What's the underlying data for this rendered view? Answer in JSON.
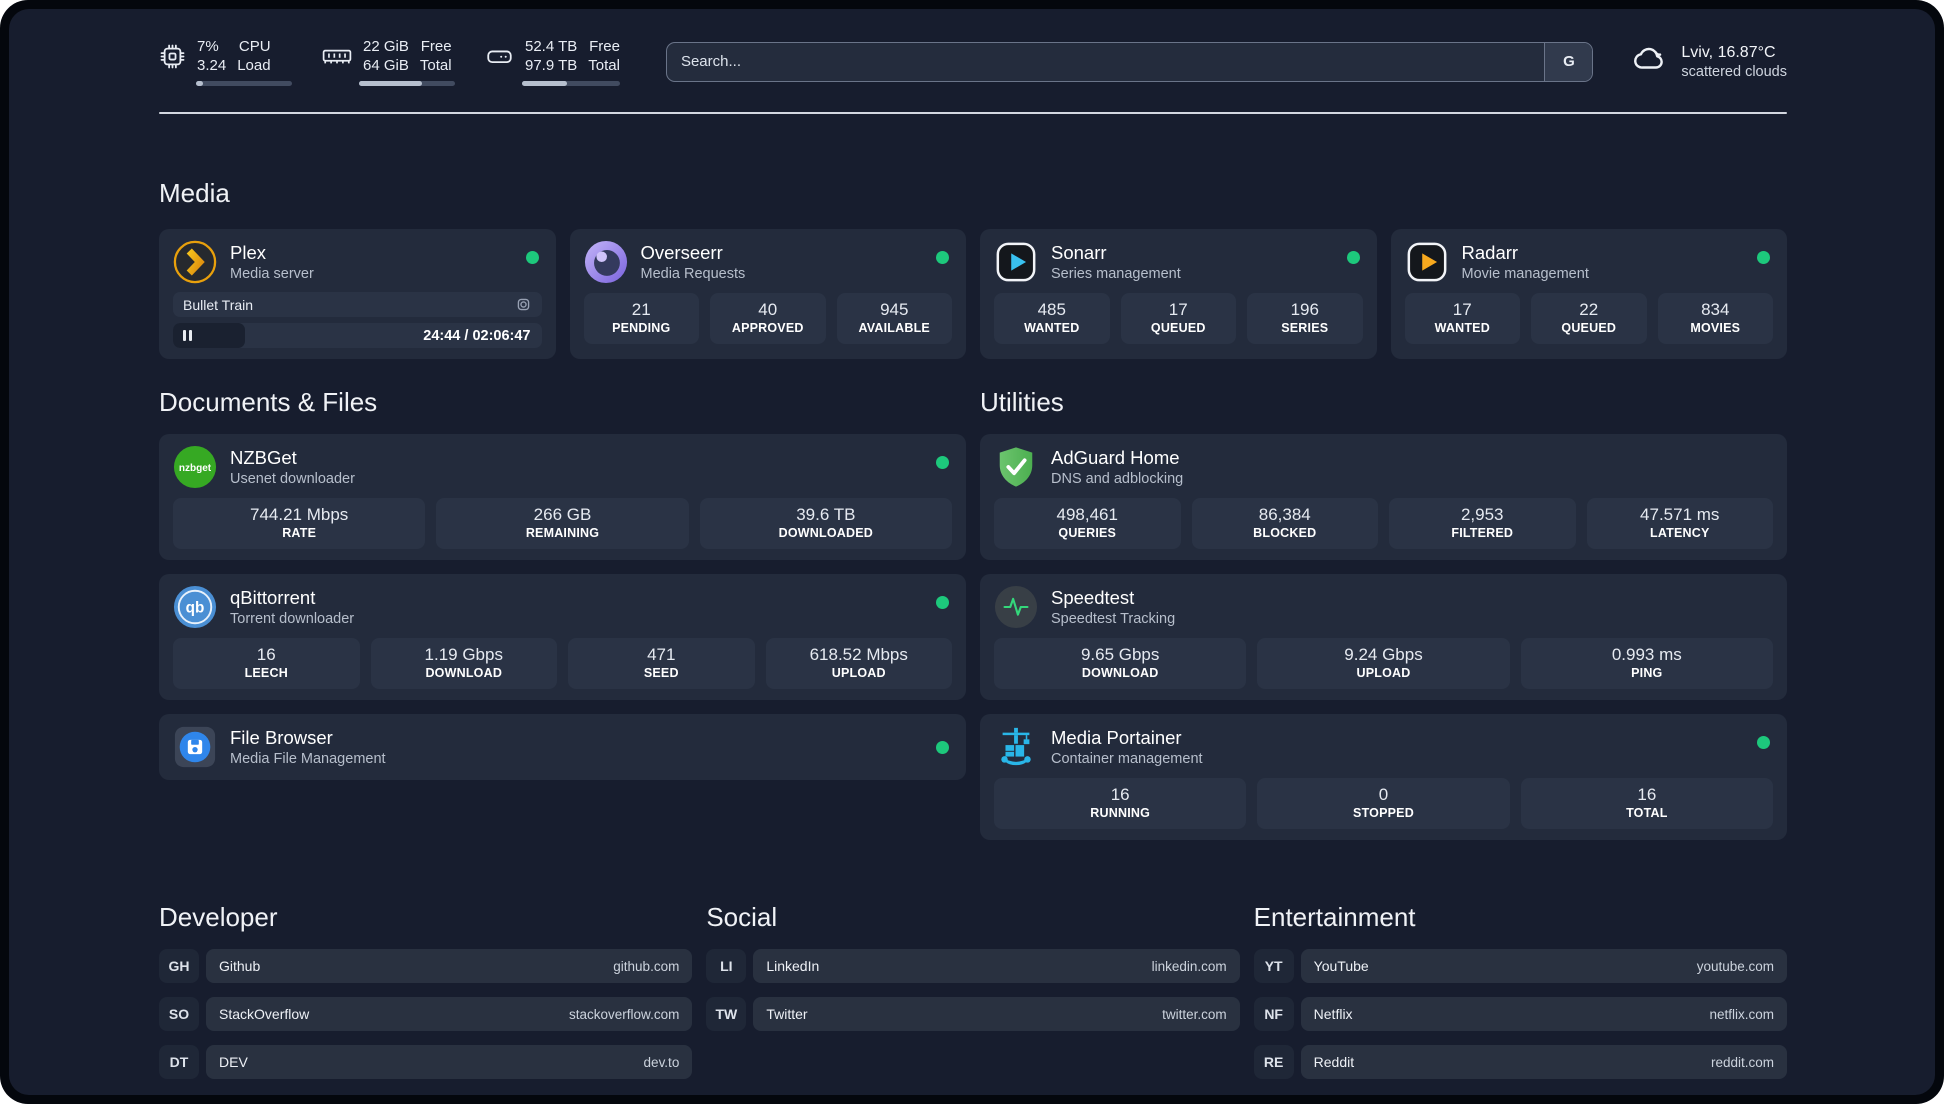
{
  "topbar": {
    "system": [
      {
        "id": "cpu",
        "values": [
          "7%",
          "3.24"
        ],
        "labels": [
          "CPU",
          "Load"
        ],
        "progress_pct": 7
      },
      {
        "id": "memory",
        "values": [
          "22 GiB",
          "64 GiB"
        ],
        "labels": [
          "Free",
          "Total"
        ],
        "progress_pct": 66
      },
      {
        "id": "disk",
        "values": [
          "52.4 TB",
          "97.9 TB"
        ],
        "labels": [
          "Free",
          "Total"
        ],
        "progress_pct": 46
      }
    ],
    "search": {
      "placeholder": "Search...",
      "engine_button": "G"
    },
    "weather": {
      "location": "Lviv, 16.87°C",
      "condition": "scattered clouds"
    }
  },
  "sections": {
    "media": "Media",
    "documents": "Documents & Files",
    "utilities": "Utilities",
    "developer": "Developer",
    "social": "Social",
    "entertainment": "Entertainment"
  },
  "apps": {
    "plex": {
      "name": "Plex",
      "subtitle": "Media server",
      "status": "online",
      "now_playing": {
        "title": "Bullet Train",
        "time": "24:44 / 02:06:47",
        "progress_pct": 19.5
      }
    },
    "overseerr": {
      "name": "Overseerr",
      "subtitle": "Media Requests",
      "status": "online",
      "stats": [
        {
          "value": "21",
          "label": "PENDING"
        },
        {
          "value": "40",
          "label": "APPROVED"
        },
        {
          "value": "945",
          "label": "AVAILABLE"
        }
      ]
    },
    "sonarr": {
      "name": "Sonarr",
      "subtitle": "Series management",
      "status": "online",
      "stats": [
        {
          "value": "485",
          "label": "WANTED"
        },
        {
          "value": "17",
          "label": "QUEUED"
        },
        {
          "value": "196",
          "label": "SERIES"
        }
      ]
    },
    "radarr": {
      "name": "Radarr",
      "subtitle": "Movie management",
      "status": "online",
      "stats": [
        {
          "value": "17",
          "label": "WANTED"
        },
        {
          "value": "22",
          "label": "QUEUED"
        },
        {
          "value": "834",
          "label": "MOVIES"
        }
      ]
    },
    "nzbget": {
      "name": "NZBGet",
      "subtitle": "Usenet downloader",
      "status": "online",
      "stats": [
        {
          "value": "744.21 Mbps",
          "label": "RATE"
        },
        {
          "value": "266 GB",
          "label": "REMAINING"
        },
        {
          "value": "39.6 TB",
          "label": "DOWNLOADED"
        }
      ]
    },
    "qbittorrent": {
      "name": "qBittorrent",
      "subtitle": "Torrent downloader",
      "status": "online",
      "stats": [
        {
          "value": "16",
          "label": "LEECH"
        },
        {
          "value": "1.19 Gbps",
          "label": "DOWNLOAD"
        },
        {
          "value": "471",
          "label": "SEED"
        },
        {
          "value": "618.52 Mbps",
          "label": "UPLOAD"
        }
      ]
    },
    "filebrowser": {
      "name": "File Browser",
      "subtitle": "Media File Management",
      "status": "online"
    },
    "adguard": {
      "name": "AdGuard Home",
      "subtitle": "DNS and adblocking",
      "stats": [
        {
          "value": "498,461",
          "label": "QUERIES"
        },
        {
          "value": "86,384",
          "label": "BLOCKED"
        },
        {
          "value": "2,953",
          "label": "FILTERED"
        },
        {
          "value": "47.571 ms",
          "label": "LATENCY"
        }
      ]
    },
    "speedtest": {
      "name": "Speedtest",
      "subtitle": "Speedtest Tracking",
      "stats": [
        {
          "value": "9.65 Gbps",
          "label": "DOWNLOAD"
        },
        {
          "value": "9.24 Gbps",
          "label": "UPLOAD"
        },
        {
          "value": "0.993 ms",
          "label": "PING"
        }
      ]
    },
    "portainer": {
      "name": "Media Portainer",
      "subtitle": "Container management",
      "status": "online",
      "stats": [
        {
          "value": "16",
          "label": "RUNNING"
        },
        {
          "value": "0",
          "label": "STOPPED"
        },
        {
          "value": "16",
          "label": "TOTAL"
        }
      ]
    }
  },
  "links": {
    "developer": [
      {
        "abbr": "GH",
        "name": "Github",
        "url": "github.com"
      },
      {
        "abbr": "SO",
        "name": "StackOverflow",
        "url": "stackoverflow.com"
      },
      {
        "abbr": "DT",
        "name": "DEV",
        "url": "dev.to"
      }
    ],
    "social": [
      {
        "abbr": "LI",
        "name": "LinkedIn",
        "url": "linkedin.com"
      },
      {
        "abbr": "TW",
        "name": "Twitter",
        "url": "twitter.com"
      }
    ],
    "entertainment": [
      {
        "abbr": "YT",
        "name": "YouTube",
        "url": "youtube.com"
      },
      {
        "abbr": "NF",
        "name": "Netflix",
        "url": "netflix.com"
      },
      {
        "abbr": "RE",
        "name": "Reddit",
        "url": "reddit.com"
      }
    ]
  },
  "colors": {
    "status_online": "#1dc87c",
    "background": "#171d2e",
    "card": "#232b3c",
    "accent_gold": "#e8a00c",
    "accent_blue": "#39c1f0"
  }
}
